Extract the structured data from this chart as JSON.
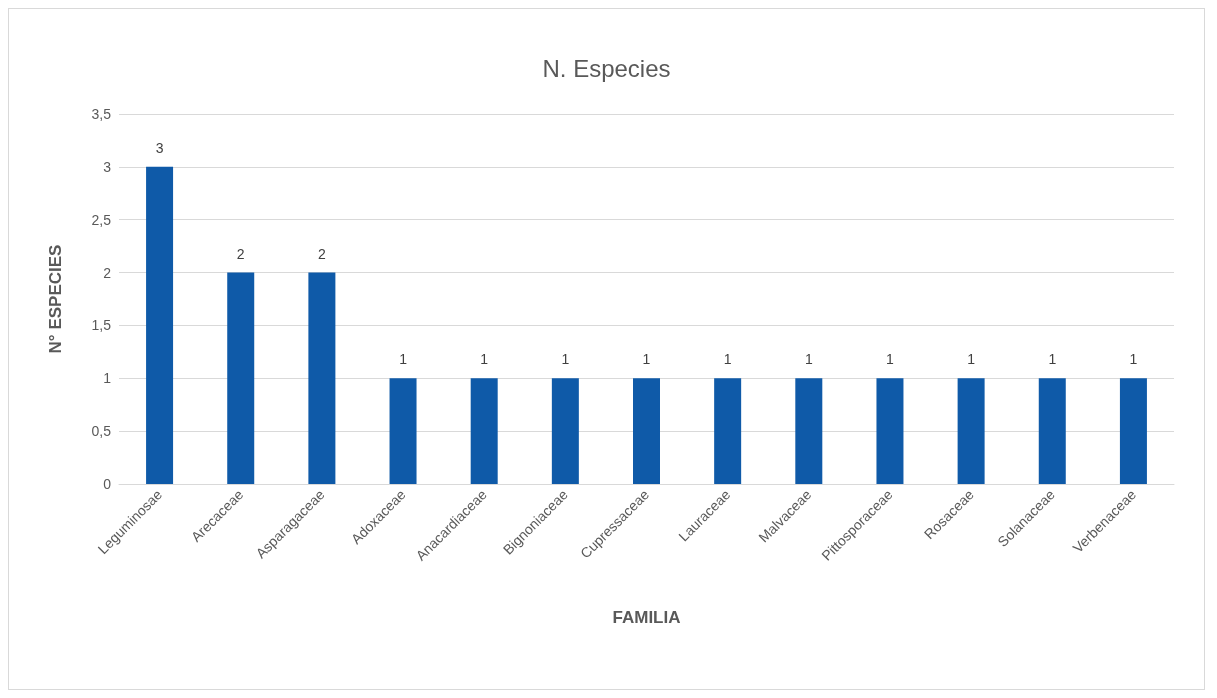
{
  "chart_data": {
    "type": "bar",
    "title": "N. Especies",
    "xlabel": "FAMILIA",
    "ylabel": "N° ESPECIES",
    "categories": [
      "Leguminosae",
      "Arecaceae",
      "Asparagaceae",
      "Adoxaceae",
      "Anacardiaceae",
      "Bignoniaceae",
      "Cupressaceae",
      "Lauraceae",
      "Malvaceae",
      "Pittosporaceae",
      "Rosaceae",
      "Solanaceae",
      "Verbenaceae"
    ],
    "values": [
      3,
      2,
      2,
      1,
      1,
      1,
      1,
      1,
      1,
      1,
      1,
      1,
      1
    ],
    "color": "#0f5aa8",
    "ylim": [
      0,
      3.5
    ],
    "yticks": [
      0,
      {
        "value": 0.5,
        "label": "0,5"
      },
      1,
      {
        "value": 1.5,
        "label": "1,5"
      },
      2,
      {
        "value": 2.5,
        "label": "2,5"
      },
      3,
      {
        "value": 3.5,
        "label": "3,5"
      }
    ],
    "grid": "y",
    "data_labels": true
  }
}
